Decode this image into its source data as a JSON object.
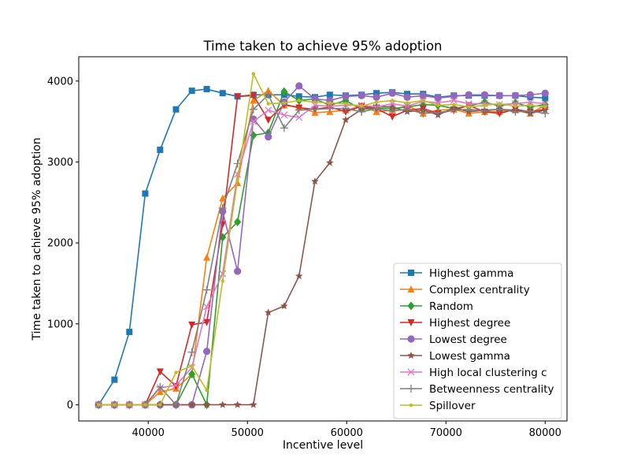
{
  "chart_data": {
    "type": "line",
    "title": "Time taken to achieve 95% adoption",
    "xlabel": "Incentive level",
    "ylabel": "Time taken to achieve 95% adoption",
    "xlim": [
      33000,
      82200
    ],
    "ylim": [
      -200,
      4300
    ],
    "xticks": [
      40000,
      50000,
      60000,
      70000,
      80000
    ],
    "yticks": [
      0,
      1000,
      2000,
      3000,
      4000
    ],
    "grid": false,
    "legend_position": "lower right",
    "x": [
      35000,
      36600,
      38100,
      39700,
      41200,
      42800,
      44400,
      45900,
      47500,
      49000,
      50600,
      52100,
      53700,
      55200,
      56800,
      58300,
      59900,
      61500,
      63000,
      64600,
      66100,
      67700,
      69200,
      70800,
      72300,
      73900,
      75400,
      77000,
      78500,
      80000
    ],
    "series": [
      {
        "name": "Highest gamma",
        "color": "#1f77b4",
        "marker": "square",
        "values": [
          0,
          310,
          900,
          2610,
          3150,
          3650,
          3880,
          3900,
          3850,
          3810,
          3830,
          3830,
          3830,
          3810,
          3800,
          3830,
          3820,
          3830,
          3850,
          3860,
          3840,
          3840,
          3800,
          3820,
          3820,
          3820,
          3820,
          3820,
          3800,
          3790
        ]
      },
      {
        "name": "Complex centrality",
        "color": "#ff7f0e",
        "marker": "triangle-up",
        "values": [
          0,
          0,
          0,
          0,
          160,
          200,
          380,
          1820,
          2550,
          2740,
          3760,
          3880,
          3700,
          3680,
          3610,
          3620,
          3640,
          3690,
          3620,
          3640,
          3700,
          3600,
          3640,
          3650,
          3600,
          3620,
          3620,
          3640,
          3600,
          3700
        ]
      },
      {
        "name": "Random",
        "color": "#2ca02c",
        "marker": "diamond",
        "values": [
          0,
          0,
          0,
          0,
          0,
          0,
          380,
          0,
          2070,
          2260,
          3330,
          3360,
          3870,
          3760,
          3780,
          3700,
          3760,
          3650,
          3670,
          3660,
          3680,
          3710,
          3700,
          3660,
          3690,
          3740,
          3690,
          3730,
          3680,
          3710
        ]
      },
      {
        "name": "Highest degree",
        "color": "#d62728",
        "marker": "triangle-down",
        "values": [
          0,
          0,
          0,
          0,
          410,
          230,
          990,
          1020,
          2230,
          3810,
          3820,
          3520,
          3710,
          3670,
          3650,
          3680,
          3620,
          3690,
          3660,
          3560,
          3640,
          3660,
          3600,
          3640,
          3700,
          3620,
          3600,
          3650,
          3620,
          3650
        ]
      },
      {
        "name": "Lowest degree",
        "color": "#9467bd",
        "marker": "circle",
        "values": [
          0,
          0,
          0,
          0,
          0,
          0,
          0,
          660,
          2390,
          1650,
          3530,
          3310,
          3740,
          3940,
          3780,
          3760,
          3810,
          3820,
          3800,
          3850,
          3800,
          3820,
          3790,
          3810,
          3830,
          3830,
          3820,
          3820,
          3830,
          3850
        ]
      },
      {
        "name": "Lowest gamma",
        "color": "#8c564b",
        "marker": "star",
        "values": [
          0,
          0,
          0,
          0,
          0,
          0,
          0,
          0,
          0,
          0,
          0,
          1140,
          1220,
          1590,
          2760,
          2990,
          3520,
          3650,
          3690,
          3680,
          3620,
          3640,
          3580,
          3670,
          3620,
          3640,
          3650,
          3640,
          3600,
          3640
        ]
      },
      {
        "name": "High local clustering c",
        "color": "#e377c2",
        "marker": "x",
        "values": [
          0,
          0,
          0,
          0,
          210,
          240,
          460,
          1210,
          1620,
          2850,
          3500,
          3640,
          3580,
          3550,
          3700,
          3690,
          3700,
          3700,
          3680,
          3720,
          3690,
          3750,
          3730,
          3760,
          3720,
          3720,
          3710,
          3720,
          3740,
          3720
        ]
      },
      {
        "name": "Betweenness centrality",
        "color": "#7f7f7f",
        "marker": "plus",
        "values": [
          0,
          0,
          0,
          0,
          220,
          0,
          650,
          1420,
          2430,
          2980,
          3650,
          3830,
          3420,
          3640,
          3650,
          3660,
          3660,
          3620,
          3660,
          3630,
          3650,
          3600,
          3610,
          3640,
          3650,
          3630,
          3650,
          3620,
          3630,
          3600
        ]
      },
      {
        "name": "Spillover",
        "color": "#bcbd22",
        "marker": "point",
        "values": [
          0,
          0,
          0,
          0,
          0,
          400,
          480,
          180,
          1530,
          2780,
          4090,
          3720,
          3730,
          3760,
          3740,
          3730,
          3720,
          3690,
          3740,
          3760,
          3730,
          3760,
          3700,
          3710,
          3680,
          3700,
          3720,
          3690,
          3700,
          3680
        ]
      }
    ]
  }
}
